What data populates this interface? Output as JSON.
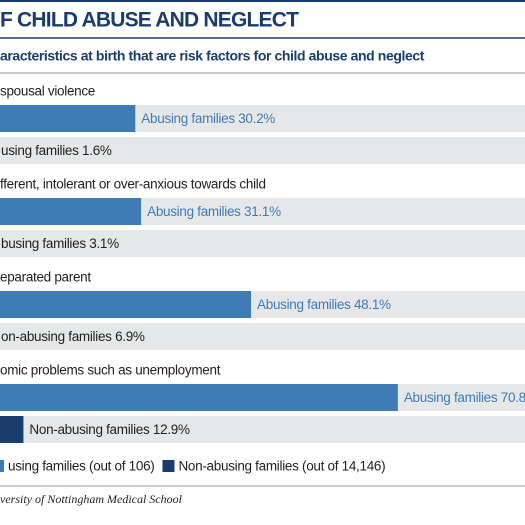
{
  "chart_data": {
    "type": "bar",
    "orientation": "horizontal",
    "title": "F CHILD ABUSE AND NEGLECT",
    "subtitle": "aracteristics at birth that are risk factors for child abuse and neglect",
    "categories": [
      "spousal violence",
      "fferent, intolerant or over-anxious towards child",
      "eparated parent",
      "omic problems such as unemployment"
    ],
    "series": [
      {
        "name": "using families (out of 106)",
        "color": "#3f7cb6",
        "values": [
          30.2,
          31.1,
          48.1,
          70.8
        ],
        "value_labels": [
          "Abusing families 30.2%",
          "Abusing families 31.1%",
          "Abusing families 48.1%",
          "Abusing families 70.8"
        ]
      },
      {
        "name": "Non-abusing families (out of 14,146)",
        "color": "#1b3d6d",
        "values": [
          1.6,
          3.1,
          6.9,
          12.9
        ],
        "value_labels": [
          "using families 1.6%",
          "busing families 3.1%",
          "on-abusing families 6.9%",
          "Non-abusing families 12.9%"
        ]
      }
    ],
    "xlim": [
      0,
      90
    ],
    "source": "versity of Nottingham Medical School"
  }
}
